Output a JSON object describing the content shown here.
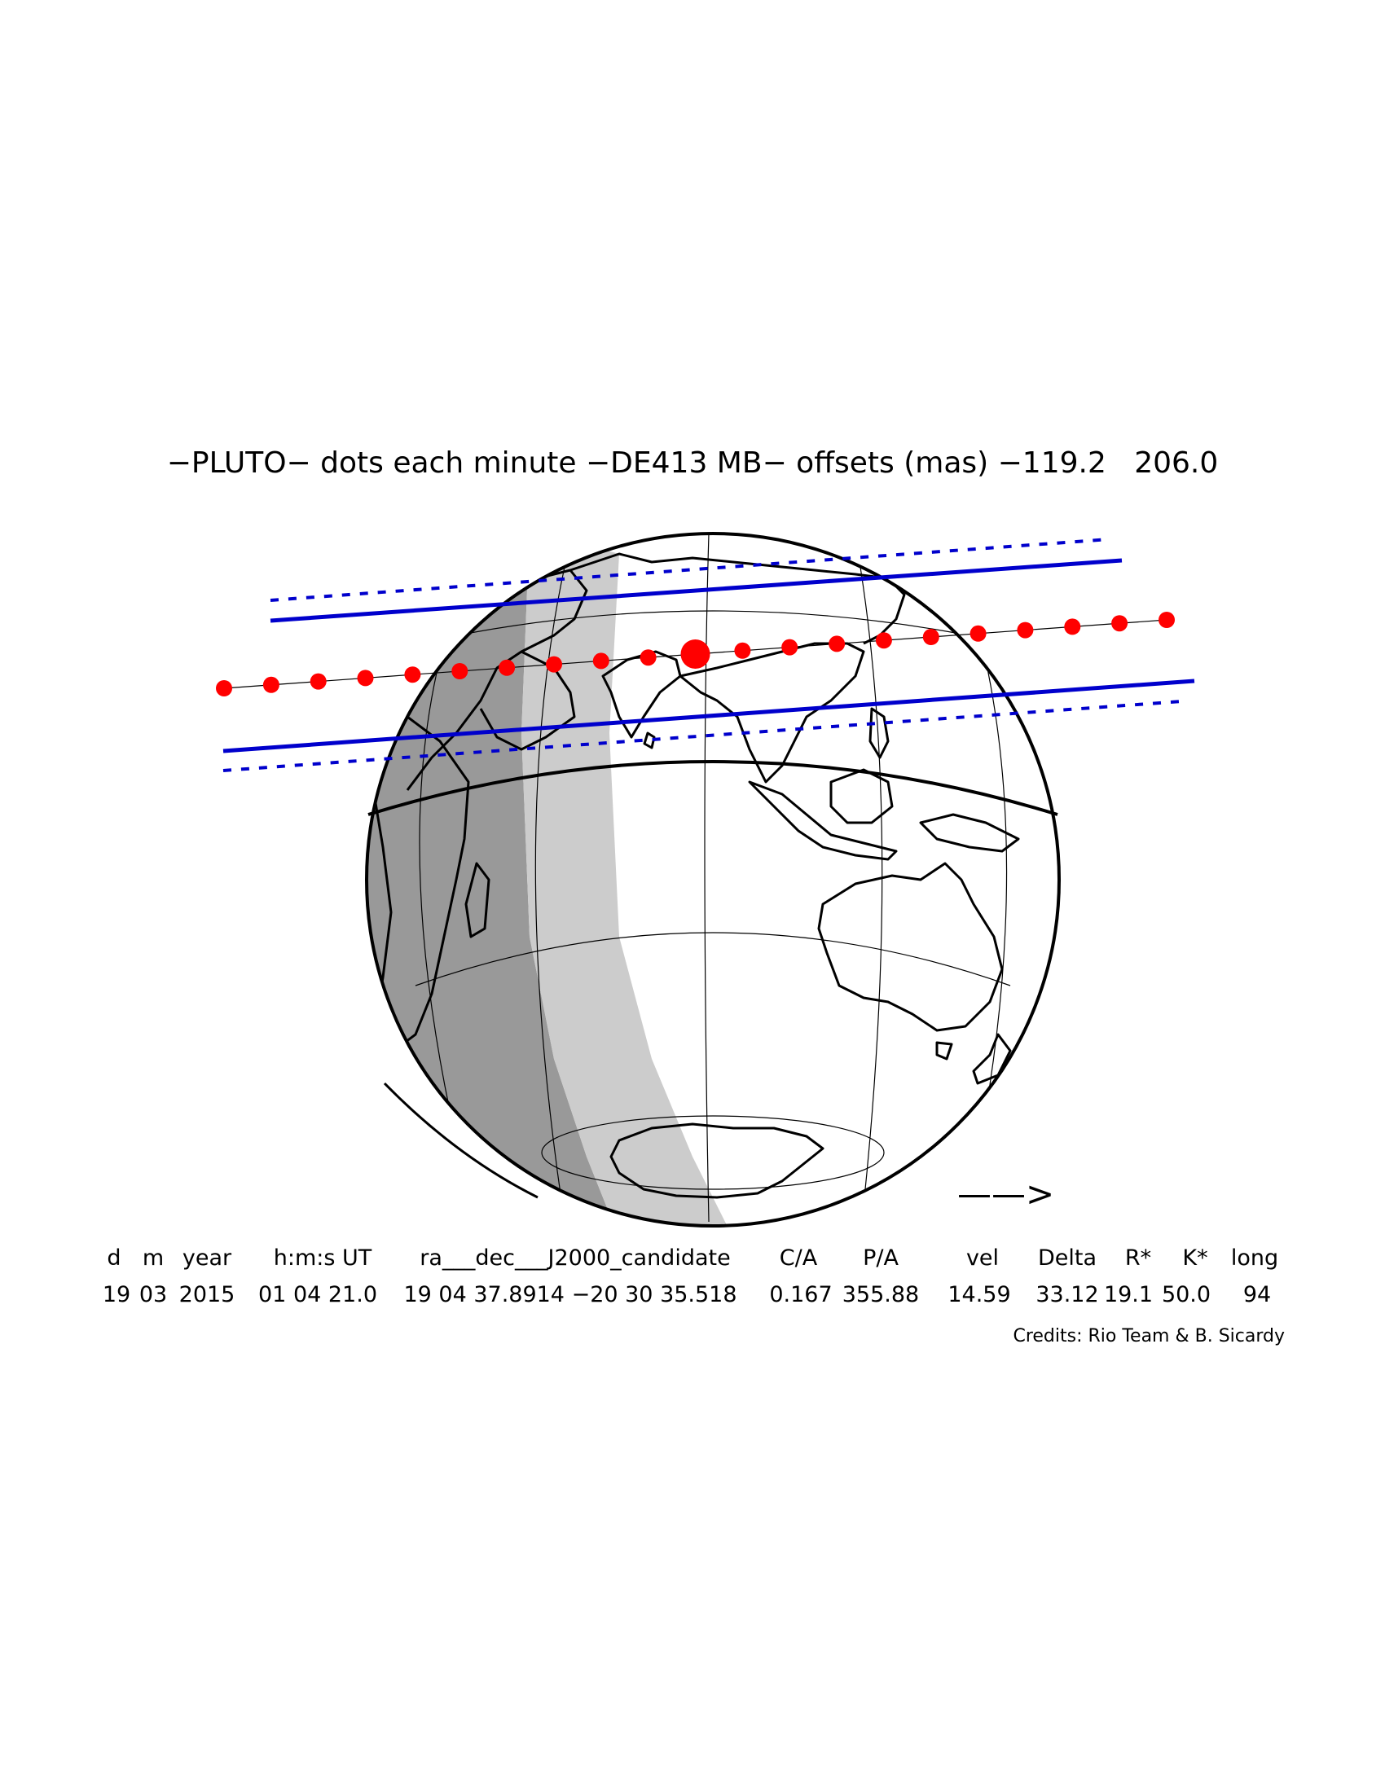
{
  "title": "−PLUTO− dots each minute −DE413 MB− offsets (mas) −119.2   206.0",
  "direction_arrow": "——>",
  "table": {
    "headers": [
      "d",
      "m",
      "year",
      "h:m:s UT",
      "ra___dec___J2000_candidate",
      "C/A",
      "P/A",
      "vel",
      "Delta",
      "R*",
      "K*",
      "long"
    ],
    "values": [
      "19",
      "03",
      "2015",
      "01 04 21.0",
      "19 04 37.8914 −20 30 35.518",
      "0.167",
      "355.88",
      "14.59",
      "33.12",
      "19.1",
      "50.0",
      "94"
    ]
  },
  "credits": "Credits: Rio Team & B. Sicardy",
  "colors": {
    "track_dots": "#ff0000",
    "shadow_limits": "#0000cc",
    "night_dark": "#999999",
    "twilight": "#cccccc"
  },
  "icons": [
    "globe-icon",
    "arrow-right-icon"
  ]
}
